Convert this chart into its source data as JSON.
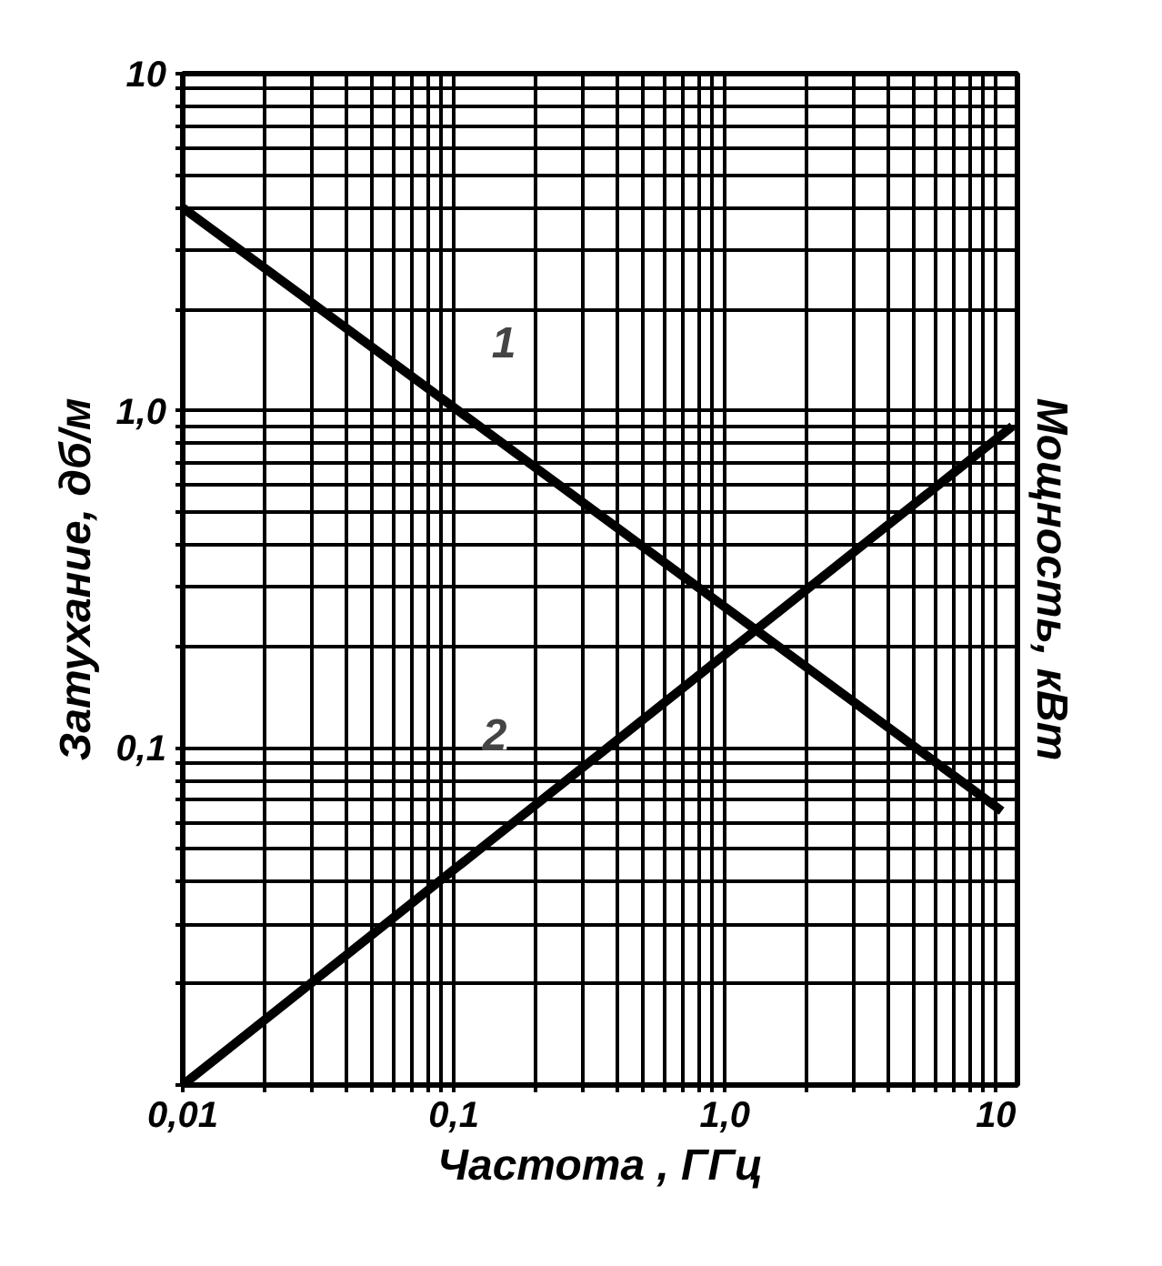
{
  "chart_data": {
    "type": "line",
    "xlabel": "Частота , ГГц",
    "ylabel": "Затухание, дб/м",
    "y2label": "Мощность, кВт",
    "log": "xy",
    "grid": true,
    "marker": "none",
    "line_style": "solid",
    "xlim": [
      0.01,
      12
    ],
    "ylim": [
      0.01,
      10
    ],
    "xticks": [
      {
        "value": 0.01,
        "label": "0,01"
      },
      {
        "value": 0.02,
        "label": null
      },
      {
        "value": 0.03,
        "label": null
      },
      {
        "value": 0.04,
        "label": null
      },
      {
        "value": 0.05,
        "label": null
      },
      {
        "value": 0.06,
        "label": null
      },
      {
        "value": 0.07,
        "label": null
      },
      {
        "value": 0.08,
        "label": null
      },
      {
        "value": 0.09,
        "label": null
      },
      {
        "value": 0.1,
        "label": "0,1"
      },
      {
        "value": 0.2,
        "label": null
      },
      {
        "value": 0.3,
        "label": null
      },
      {
        "value": 0.4,
        "label": null
      },
      {
        "value": 0.5,
        "label": null
      },
      {
        "value": 0.6,
        "label": null
      },
      {
        "value": 0.7,
        "label": null
      },
      {
        "value": 0.8,
        "label": null
      },
      {
        "value": 0.9,
        "label": null
      },
      {
        "value": 1,
        "label": "1,0"
      },
      {
        "value": 2,
        "label": null
      },
      {
        "value": 3,
        "label": null
      },
      {
        "value": 4,
        "label": null
      },
      {
        "value": 5,
        "label": null
      },
      {
        "value": 6,
        "label": null
      },
      {
        "value": 7,
        "label": null
      },
      {
        "value": 8,
        "label": null
      },
      {
        "value": 9,
        "label": null
      },
      10
    ],
    "yticks": [
      {
        "value": 0.01,
        "label": null
      },
      {
        "value": 0.02,
        "label": null
      },
      {
        "value": 0.03,
        "label": null
      },
      {
        "value": 0.04,
        "label": null
      },
      {
        "value": 0.05,
        "label": null
      },
      {
        "value": 0.06,
        "label": null
      },
      {
        "value": 0.07,
        "label": null
      },
      {
        "value": 0.08,
        "label": null
      },
      {
        "value": 0.09,
        "label": null
      },
      {
        "value": 0.1,
        "label": "0,1"
      },
      {
        "value": 0.2,
        "label": null
      },
      {
        "value": 0.3,
        "label": null
      },
      {
        "value": 0.4,
        "label": null
      },
      {
        "value": 0.5,
        "label": null
      },
      {
        "value": 0.6,
        "label": null
      },
      {
        "value": 0.7,
        "label": null
      },
      {
        "value": 0.8,
        "label": null
      },
      {
        "value": 0.9,
        "label": null
      },
      {
        "value": 1,
        "label": "1,0"
      },
      {
        "value": 2,
        "label": null
      },
      {
        "value": 3,
        "label": null
      },
      {
        "value": 4,
        "label": null
      },
      {
        "value": 5,
        "label": null
      },
      {
        "value": 6,
        "label": null
      },
      {
        "value": 7,
        "label": null
      },
      {
        "value": 8,
        "label": null
      },
      {
        "value": 9,
        "label": null
      },
      10
    ],
    "series": [
      {
        "color": "#000000",
        "x": [
          0.01,
          10.5
        ],
        "values": [
          4,
          0.065
        ]
      },
      {
        "color": "#000000",
        "x": [
          0.01,
          11.5
        ],
        "values": [
          0.01,
          0.9
        ]
      }
    ],
    "annotations": [
      {
        "text": "1",
        "x": 0.153,
        "y": 0.81
      },
      {
        "text": "2",
        "x": 0.16,
        "y": 0.059
      }
    ]
  }
}
